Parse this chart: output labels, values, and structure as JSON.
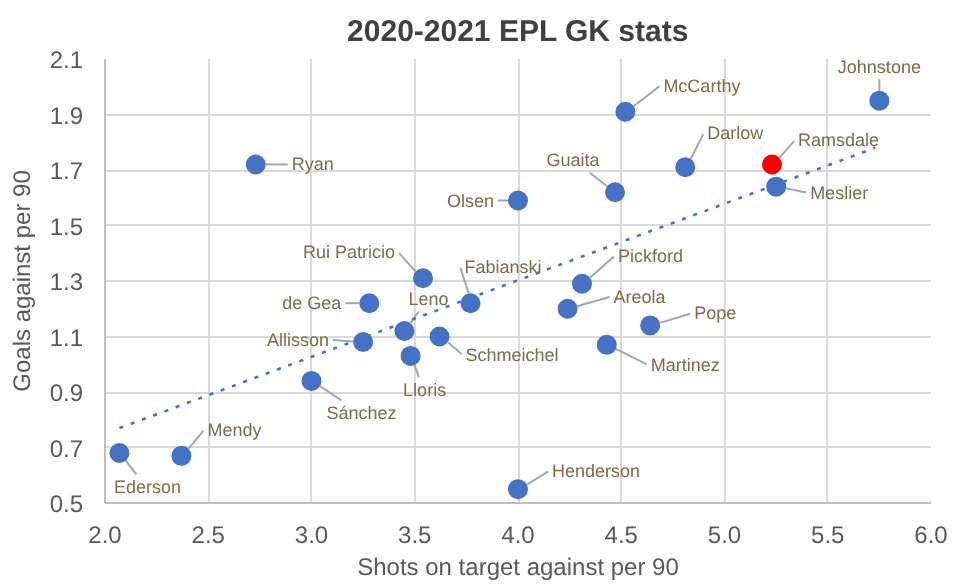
{
  "chart_data": {
    "type": "scatter",
    "title": "2020-2021 EPL GK stats",
    "xlabel": "Shots on target against per 90",
    "ylabel": "Goals against per 90",
    "xlim": [
      2.0,
      6.0
    ],
    "xticks": [
      {
        "value": 2.0,
        "label": "2.0"
      },
      {
        "value": 2.5,
        "label": "2.5"
      },
      {
        "value": 3.0,
        "label": "3.0"
      },
      {
        "value": 3.5,
        "label": "3.5"
      },
      {
        "value": 4.0,
        "label": "4.0"
      },
      {
        "value": 4.5,
        "label": "4.5"
      },
      {
        "value": 5.0,
        "label": "5.0"
      },
      {
        "value": 5.5,
        "label": "5.5"
      },
      {
        "value": 6.0,
        "label": "6.0"
      }
    ],
    "ylim": [
      0.5,
      2.1
    ],
    "yticks": [
      0.5,
      0.7,
      0.9,
      1.1,
      1.3,
      1.5,
      1.7,
      1.9,
      2.1
    ],
    "grid": true,
    "marker": "circle",
    "series": [
      {
        "name": "Ryan",
        "x": [
          2.73
        ],
        "values": [
          1.72
        ],
        "color": "#4472c4"
      },
      {
        "name": "McCarthy",
        "x": [
          4.52
        ],
        "values": [
          1.91
        ],
        "color": "#4472c4"
      },
      {
        "name": "Johnstone",
        "x": [
          5.75
        ],
        "values": [
          1.95
        ],
        "color": "#4472c4"
      },
      {
        "name": "Darlow",
        "x": [
          4.81
        ],
        "values": [
          1.71
        ],
        "color": "#4472c4"
      },
      {
        "name": "Ramsdale",
        "x": [
          5.23
        ],
        "values": [
          1.72
        ],
        "color": "#ff0000"
      },
      {
        "name": "Meslier",
        "x": [
          5.25
        ],
        "values": [
          1.64
        ],
        "color": "#4472c4"
      },
      {
        "name": "Guaita",
        "x": [
          4.47
        ],
        "values": [
          1.62
        ],
        "color": "#4472c4"
      },
      {
        "name": "Olsen",
        "x": [
          4.0
        ],
        "values": [
          1.59
        ],
        "color": "#4472c4"
      },
      {
        "name": "Rui Patricio",
        "x": [
          3.54
        ],
        "values": [
          1.31
        ],
        "color": "#4472c4"
      },
      {
        "name": "Fabianski",
        "x": [
          3.77
        ],
        "values": [
          1.22
        ],
        "color": "#4472c4"
      },
      {
        "name": "Pickford",
        "x": [
          4.31
        ],
        "values": [
          1.29
        ],
        "color": "#4472c4"
      },
      {
        "name": "de Gea",
        "x": [
          3.28
        ],
        "values": [
          1.22
        ],
        "color": "#4472c4"
      },
      {
        "name": "Leno",
        "x": [
          3.45
        ],
        "values": [
          1.12
        ],
        "color": "#4472c4"
      },
      {
        "name": "Areola",
        "x": [
          4.24
        ],
        "values": [
          1.2
        ],
        "color": "#4472c4"
      },
      {
        "name": "Pope",
        "x": [
          4.64
        ],
        "values": [
          1.14
        ],
        "color": "#4472c4"
      },
      {
        "name": "Allisson",
        "x": [
          3.25
        ],
        "values": [
          1.08
        ],
        "color": "#4472c4"
      },
      {
        "name": "Schmeichel",
        "x": [
          3.62
        ],
        "values": [
          1.1
        ],
        "color": "#4472c4"
      },
      {
        "name": "Lloris",
        "x": [
          3.48
        ],
        "values": [
          1.03
        ],
        "color": "#4472c4"
      },
      {
        "name": "Martinez",
        "x": [
          4.43
        ],
        "values": [
          1.07
        ],
        "color": "#4472c4"
      },
      {
        "name": "Sánchez",
        "x": [
          3.0
        ],
        "values": [
          0.94
        ],
        "color": "#4472c4"
      },
      {
        "name": "Mendy",
        "x": [
          2.37
        ],
        "values": [
          0.67
        ],
        "color": "#4472c4"
      },
      {
        "name": "Ederson",
        "x": [
          2.07
        ],
        "values": [
          0.68
        ],
        "color": "#4472c4"
      },
      {
        "name": "Henderson",
        "x": [
          4.0
        ],
        "values": [
          0.55
        ],
        "color": "#4472c4"
      },
      {
        "type": "line",
        "x": [
          2.07,
          5.73
        ],
        "values": [
          0.77,
          1.78
        ],
        "color": "#4472c4",
        "line_style": "dotted",
        "marker": "none"
      }
    ]
  }
}
